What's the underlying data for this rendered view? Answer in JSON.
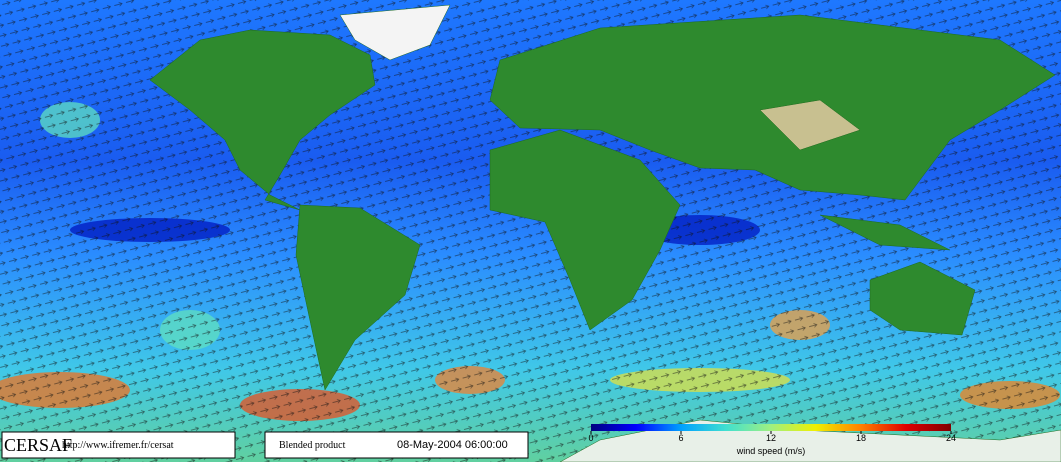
{
  "logo": "CERSAF",
  "url": "http://www.ifremer.fr/cersat",
  "product": "Blended product",
  "timestamp": "08-May-2004 06:00:00",
  "colorbar": {
    "label": "wind speed (m/s)",
    "lim": [
      0,
      24
    ],
    "ticks": [
      0,
      6,
      12,
      18,
      24
    ],
    "colors": [
      "#000080",
      "#0000ff",
      "#00a0ff",
      "#40e0d0",
      "#a0f080",
      "#f0f000",
      "#ff8000",
      "#e00000",
      "#800000"
    ]
  }
}
